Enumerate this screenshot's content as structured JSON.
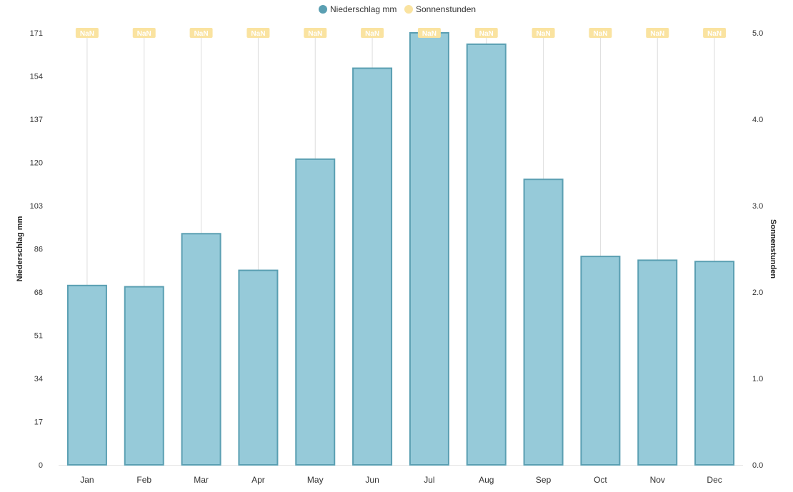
{
  "chart_data": {
    "type": "bar",
    "categories": [
      "Jan",
      "Feb",
      "Mar",
      "Apr",
      "May",
      "Jun",
      "Jul",
      "Aug",
      "Sep",
      "Oct",
      "Nov",
      "Dec"
    ],
    "series": [
      {
        "name": "Niederschlag mm",
        "type": "bar",
        "axis": "left",
        "color": "#96cad9",
        "border_color": "#5a9fb2",
        "values": [
          71,
          70.5,
          91.5,
          77,
          121,
          157,
          171,
          166.5,
          113,
          82.5,
          81,
          80.5
        ]
      },
      {
        "name": "Sonnenstunden",
        "type": "line",
        "axis": "right",
        "color": "#fae3a0",
        "values": [
          null,
          null,
          null,
          null,
          null,
          null,
          null,
          null,
          null,
          null,
          null,
          null
        ],
        "point_labels": [
          "NaN",
          "NaN",
          "NaN",
          "NaN",
          "NaN",
          "NaN",
          "NaN",
          "NaN",
          "NaN",
          "NaN",
          "NaN",
          "NaN"
        ]
      }
    ],
    "y_left": {
      "label": "Niederschlag mm",
      "ylim": [
        0,
        171
      ],
      "ticks": [
        "0",
        "17",
        "34",
        "51",
        "68",
        "86",
        "103",
        "120",
        "137",
        "154",
        "171"
      ]
    },
    "y_right": {
      "label": "Sonnenstunden",
      "ylim": [
        0,
        5
      ],
      "ticks": [
        "0.0",
        "1.0",
        "2.0",
        "3.0",
        "4.0",
        "5.0"
      ]
    },
    "grid": "vertical",
    "legend": "top-center"
  }
}
